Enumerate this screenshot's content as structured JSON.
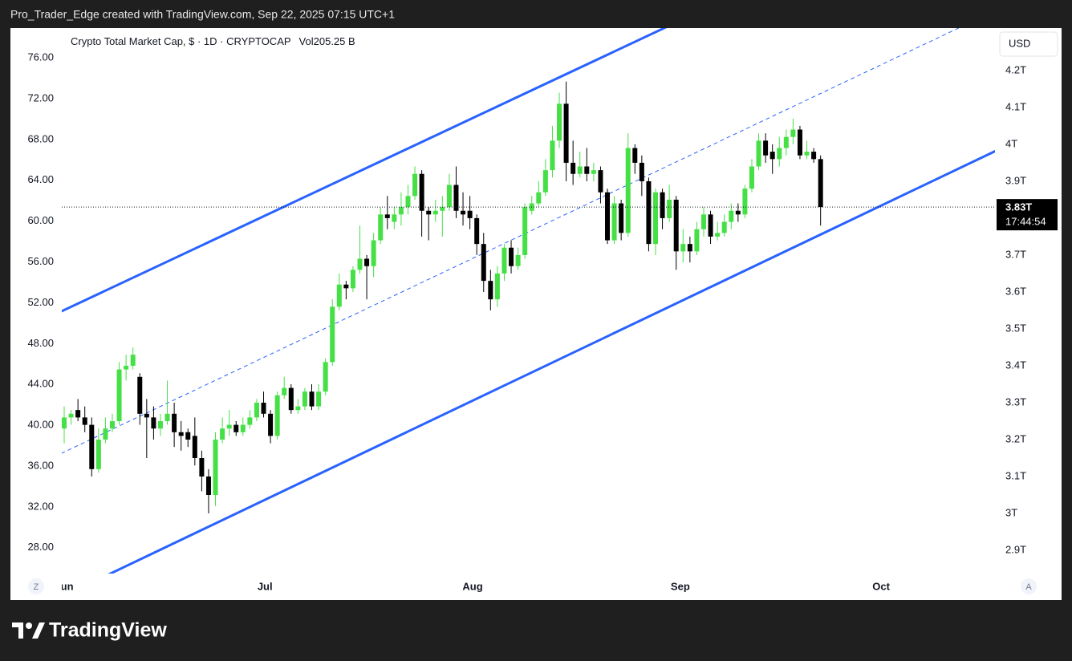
{
  "caption": "Pro_Trader_Edge created with TradingView.com, Sep 22, 2025 07:15 UTC+1",
  "brand": "TradingView",
  "buttons": [
    "Z",
    "A"
  ],
  "chart_data": {
    "type": "candlestick",
    "title": "Crypto Total Market Cap, $ · 1D · CRYPTOCAP",
    "volume_label": "Vol",
    "volume_value": "205.25 B",
    "currency": "USD",
    "up_color": "#45e045",
    "down_color": "#000000",
    "x": [
      0,
      1,
      2,
      3,
      4,
      5,
      6,
      7,
      8,
      9,
      10,
      11,
      12,
      13,
      14,
      15,
      16,
      17,
      18,
      19,
      20,
      21,
      22,
      23,
      24,
      25,
      26,
      27,
      28,
      29,
      30,
      31,
      32,
      33,
      34,
      35,
      36,
      37,
      38,
      39,
      40,
      41,
      42,
      43,
      44,
      45,
      46,
      47,
      48,
      49,
      50,
      51,
      52,
      53,
      54,
      55,
      56,
      57,
      58,
      59,
      60,
      61,
      62,
      63,
      64,
      65,
      66,
      67,
      68,
      69,
      70,
      71,
      72,
      73,
      74,
      75,
      76,
      77,
      78,
      79,
      80,
      81,
      82,
      83,
      84,
      85,
      86,
      87,
      88,
      89,
      90,
      91,
      92,
      93,
      94,
      95,
      96,
      97,
      98,
      99,
      100,
      101,
      102,
      103,
      104,
      105,
      106,
      107,
      108,
      109,
      110
    ],
    "open": [
      3.23,
      3.26,
      3.28,
      3.26,
      3.24,
      3.12,
      3.2,
      3.23,
      3.25,
      3.39,
      3.4,
      3.37,
      3.27,
      3.26,
      3.23,
      3.25,
      3.27,
      3.22,
      3.22,
      3.21,
      3.15,
      3.1,
      3.05,
      3.2,
      3.23,
      3.24,
      3.22,
      3.24,
      3.26,
      3.3,
      3.27,
      3.21,
      3.32,
      3.34,
      3.28,
      3.29,
      3.33,
      3.29,
      3.33,
      3.41,
      3.56,
      3.62,
      3.61,
      3.66,
      3.69,
      3.67,
      3.74,
      3.81,
      3.79,
      3.81,
      3.83,
      3.86,
      3.92,
      3.82,
      3.81,
      3.82,
      3.83,
      3.89,
      3.82,
      3.82,
      3.8,
      3.73,
      3.63,
      3.58,
      3.65,
      3.72,
      3.67,
      3.7,
      3.82,
      3.84,
      3.87,
      3.93,
      4.01,
      4.11,
      3.95,
      3.92,
      3.94,
      3.92,
      3.93,
      3.87,
      3.74,
      3.84,
      3.76,
      3.99,
      3.95,
      3.9,
      3.73,
      3.87,
      3.8,
      3.85,
      3.71,
      3.73,
      3.71,
      3.77,
      3.81,
      3.75,
      3.76,
      3.79,
      3.82,
      3.81,
      3.88,
      3.94,
      4.01,
      3.98,
      3.96,
      3.99,
      4.02,
      4.04,
      3.97,
      3.98,
      3.96
    ],
    "high": [
      3.29,
      3.28,
      3.31,
      3.29,
      3.26,
      3.23,
      3.26,
      3.27,
      3.41,
      3.43,
      3.45,
      3.38,
      3.31,
      3.29,
      3.27,
      3.36,
      3.3,
      3.25,
      3.23,
      3.26,
      3.17,
      3.12,
      3.22,
      3.26,
      3.28,
      3.25,
      3.26,
      3.28,
      3.31,
      3.33,
      3.28,
      3.33,
      3.37,
      3.35,
      3.31,
      3.34,
      3.35,
      3.35,
      3.42,
      3.58,
      3.65,
      3.63,
      3.67,
      3.78,
      3.7,
      3.76,
      3.83,
      3.86,
      3.83,
      3.87,
      3.89,
      3.94,
      3.93,
      3.83,
      3.85,
      3.86,
      3.92,
      3.94,
      3.87,
      3.86,
      3.81,
      3.76,
      3.66,
      3.67,
      3.73,
      3.74,
      3.72,
      3.84,
      3.86,
      3.9,
      3.96,
      4.05,
      4.14,
      4.17,
      4.01,
      3.98,
      3.99,
      3.95,
      3.94,
      3.88,
      3.86,
      3.85,
      4.03,
      4.0,
      3.97,
      3.91,
      3.88,
      3.88,
      3.89,
      3.86,
      3.77,
      3.75,
      3.79,
      3.83,
      3.82,
      3.79,
      3.81,
      3.84,
      3.84,
      3.89,
      3.96,
      4.03,
      4.03,
      4.0,
      4.02,
      4.04,
      4.07,
      4.05,
      4.01,
      3.99,
      3.97
    ],
    "low": [
      3.19,
      3.24,
      3.25,
      3.22,
      3.1,
      3.11,
      3.19,
      3.22,
      3.24,
      3.36,
      3.39,
      3.24,
      3.15,
      3.2,
      3.21,
      3.24,
      3.18,
      3.17,
      3.18,
      3.13,
      3.06,
      3.0,
      3.02,
      3.19,
      3.21,
      3.21,
      3.21,
      3.23,
      3.25,
      3.26,
      3.19,
      3.2,
      3.31,
      3.27,
      3.27,
      3.28,
      3.28,
      3.28,
      3.32,
      3.4,
      3.55,
      3.58,
      3.6,
      3.65,
      3.58,
      3.64,
      3.73,
      3.77,
      3.77,
      3.78,
      3.81,
      3.85,
      3.75,
      3.74,
      3.79,
      3.75,
      3.82,
      3.8,
      3.78,
      3.77,
      3.7,
      3.6,
      3.55,
      3.56,
      3.63,
      3.65,
      3.66,
      3.69,
      3.81,
      3.83,
      3.86,
      3.91,
      3.99,
      3.9,
      3.89,
      3.91,
      3.9,
      3.9,
      3.84,
      3.73,
      3.73,
      3.74,
      3.75,
      3.92,
      3.86,
      3.71,
      3.7,
      3.77,
      3.79,
      3.66,
      3.68,
      3.68,
      3.7,
      3.75,
      3.73,
      3.74,
      3.75,
      3.77,
      3.79,
      3.8,
      3.87,
      3.93,
      3.95,
      3.92,
      3.94,
      3.97,
      4.0,
      3.96,
      3.96,
      3.95,
      3.78
    ],
    "close": [
      3.26,
      3.27,
      3.26,
      3.24,
      3.12,
      3.2,
      3.23,
      3.25,
      3.39,
      3.4,
      3.43,
      3.27,
      3.26,
      3.23,
      3.25,
      3.27,
      3.22,
      3.21,
      3.2,
      3.15,
      3.1,
      3.05,
      3.2,
      3.23,
      3.24,
      3.22,
      3.24,
      3.26,
      3.3,
      3.27,
      3.21,
      3.32,
      3.34,
      3.28,
      3.29,
      3.33,
      3.29,
      3.33,
      3.41,
      3.56,
      3.62,
      3.61,
      3.66,
      3.69,
      3.67,
      3.74,
      3.81,
      3.8,
      3.81,
      3.83,
      3.86,
      3.92,
      3.82,
      3.81,
      3.82,
      3.83,
      3.89,
      3.82,
      3.81,
      3.8,
      3.73,
      3.63,
      3.58,
      3.65,
      3.72,
      3.67,
      3.7,
      3.83,
      3.84,
      3.87,
      3.93,
      4.01,
      4.11,
      3.95,
      3.92,
      3.94,
      3.92,
      3.93,
      3.87,
      3.74,
      3.84,
      3.76,
      3.99,
      3.95,
      3.9,
      3.73,
      3.87,
      3.8,
      3.85,
      3.71,
      3.73,
      3.71,
      3.77,
      3.81,
      3.75,
      3.76,
      3.79,
      3.82,
      3.81,
      3.88,
      3.94,
      4.01,
      3.97,
      3.96,
      3.99,
      4.02,
      4.04,
      3.97,
      3.98,
      3.96,
      3.83
    ],
    "xlim": [
      -0.35,
      135.36
    ],
    "xticks": [
      {
        "value": 0,
        "label": "Jun"
      },
      {
        "value": 29.2,
        "label": "Jul"
      },
      {
        "value": 59.4,
        "label": "Aug"
      },
      {
        "value": 89.6,
        "label": "Sep"
      },
      {
        "value": 118.8,
        "label": "Oct"
      }
    ],
    "ylim": [
      2.837,
      4.315
    ],
    "yticks": [
      {
        "value": 2.9,
        "label": "2.9T"
      },
      {
        "value": 3,
        "label": "3T"
      },
      {
        "value": 3.1,
        "label": "3.1T"
      },
      {
        "value": 3.2,
        "label": "3.2T"
      },
      {
        "value": 3.3,
        "label": "3.3T"
      },
      {
        "value": 3.4,
        "label": "3.4T"
      },
      {
        "value": 3.5,
        "label": "3.5T"
      },
      {
        "value": 3.6,
        "label": "3.6T"
      },
      {
        "value": 3.7,
        "label": "3.7T"
      },
      {
        "value": 3.8,
        "label": "3.8T"
      },
      {
        "value": 3.9,
        "label": "3.9T"
      },
      {
        "value": 4,
        "label": "4T"
      },
      {
        "value": 4.1,
        "label": "4.1T"
      },
      {
        "value": 4.2,
        "label": "4.2T"
      }
    ],
    "y2lim": [
      25.47,
      78.91
    ],
    "y2ticks": [
      {
        "value": 28,
        "label": "28.00"
      },
      {
        "value": 32,
        "label": "32.00"
      },
      {
        "value": 36,
        "label": "36.00"
      },
      {
        "value": 40,
        "label": "40.00"
      },
      {
        "value": 44,
        "label": "44.00"
      },
      {
        "value": 48,
        "label": "48.00"
      },
      {
        "value": 52,
        "label": "52.00"
      },
      {
        "value": 56,
        "label": "56.00"
      },
      {
        "value": 60,
        "label": "60.00"
      },
      {
        "value": 64,
        "label": "64.00"
      },
      {
        "value": 68,
        "label": "68.00"
      },
      {
        "value": 72,
        "label": "72.00"
      },
      {
        "value": 76,
        "label": "76.00"
      }
    ],
    "last_price": {
      "value": 3.83,
      "label": "3.83T"
    },
    "countdown": "17:44:54"
  }
}
